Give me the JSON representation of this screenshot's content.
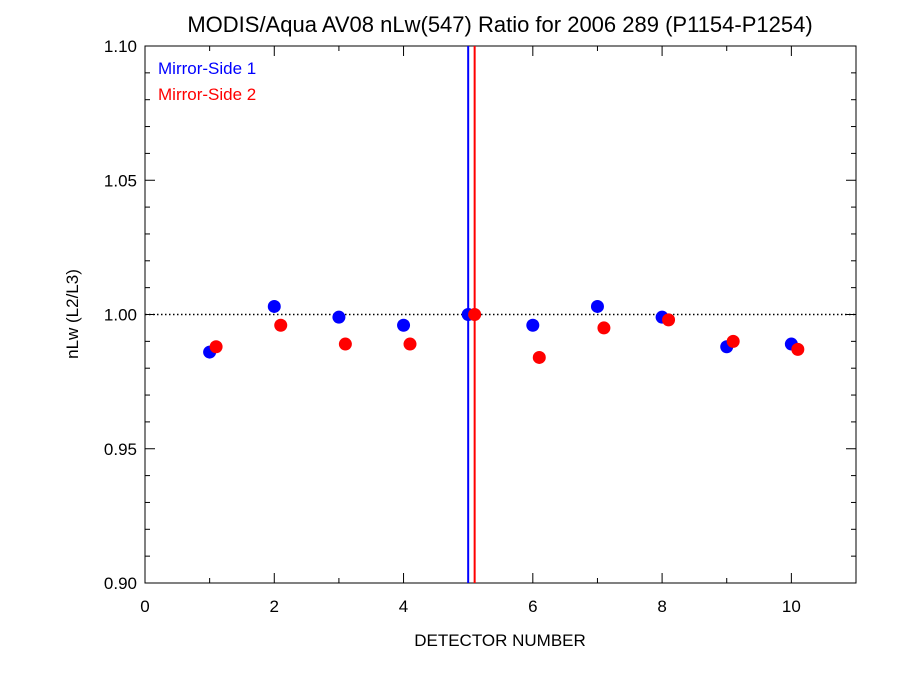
{
  "chart_data": {
    "type": "scatter",
    "title": "MODIS/Aqua AV08 nLw(547) Ratio for 2006 289 (P1154-P1254)",
    "xlabel": "DETECTOR NUMBER",
    "ylabel": "nLw (L2/L3)",
    "xlim": [
      0,
      11
    ],
    "ylim": [
      0.9,
      1.1
    ],
    "x_ticks": [
      0,
      2,
      4,
      6,
      8,
      10
    ],
    "x_tick_labels": [
      "0",
      "2",
      "4",
      "6",
      "8",
      "10"
    ],
    "y_ticks": [
      0.9,
      0.95,
      1.0,
      1.05,
      1.1
    ],
    "y_tick_labels": [
      "0.90",
      "0.95",
      "1.00",
      "1.05",
      "1.10"
    ],
    "reference_line": {
      "y": 1.0,
      "style": "dotted",
      "color": "#000000"
    },
    "vertical_lines": [
      {
        "x": 5.0,
        "color": "#0000ff"
      },
      {
        "x": 5.1,
        "color": "#ff0000"
      }
    ],
    "legend_position": "top-left",
    "series": [
      {
        "name": "Mirror-Side 1",
        "color": "#0000ff",
        "x": [
          1,
          2,
          3,
          4,
          5,
          6,
          7,
          8,
          9,
          10
        ],
        "y": [
          0.986,
          1.003,
          0.999,
          0.996,
          1.0,
          0.996,
          1.003,
          0.999,
          0.988,
          0.989
        ]
      },
      {
        "name": "Mirror-Side 2",
        "color": "#ff0000",
        "x": [
          1.1,
          2.1,
          3.1,
          4.1,
          5.1,
          6.1,
          7.1,
          8.1,
          9.1,
          10.1
        ],
        "y": [
          0.988,
          0.996,
          0.989,
          0.989,
          1.0,
          0.984,
          0.995,
          0.998,
          0.99,
          0.987
        ]
      }
    ]
  }
}
